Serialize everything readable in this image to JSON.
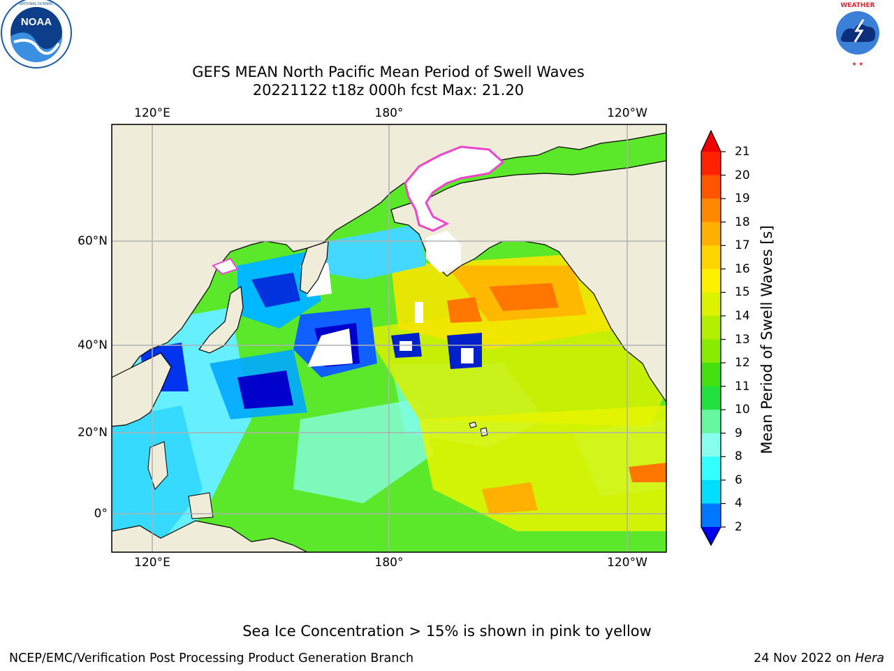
{
  "header": {
    "title_line1": "GEFS MEAN North Pacific Mean Period of Swell Waves",
    "title_line2": "20221122 t18z 000h fcst   Max: 21.20"
  },
  "logos": {
    "left": {
      "name": "NOAA",
      "ring_text": "NATIONAL OCEANIC AND ATMOSPHERIC ADMINISTRATION · U.S. DEPARTMENT OF COMMERCE",
      "color": "#1a5aa8"
    },
    "right": {
      "name": "NATIONAL WEATHER SERVICE",
      "color": "#d6262e"
    }
  },
  "map": {
    "lon_top_ticks": [
      "120°E",
      "180°",
      "120°W"
    ],
    "lon_bottom_ticks": [
      "120°E",
      "180°",
      "120°W"
    ],
    "lat_ticks": [
      "60°N",
      "40°N",
      "20°N",
      "0°"
    ],
    "land_color": "#efedd9",
    "grid_color": "#b0b0b0",
    "ice_color": "#ffffff",
    "ice_edge_color": "#ee44cc"
  },
  "colorbar": {
    "label": "Mean Period of Swell Waves [s]",
    "ticks": [
      "21",
      "20",
      "19",
      "18",
      "17",
      "16",
      "15",
      "14",
      "13",
      "12",
      "11",
      "10",
      "9",
      "8",
      "6",
      "4",
      "2"
    ],
    "colors": [
      "#ff2200",
      "#ff5500",
      "#ff8800",
      "#ffb000",
      "#ffd500",
      "#fff000",
      "#ddf200",
      "#b4ee00",
      "#88ec00",
      "#44e010",
      "#22e040",
      "#66f7a0",
      "#88ffee",
      "#33ffff",
      "#00ddff",
      "#0077ff",
      "#0000ee"
    ],
    "over_color": "#ee0000",
    "under_color": "#0000ee"
  },
  "footer": {
    "note": "Sea Ice Concentration > 15% is shown in pink to yellow",
    "credit": "NCEP/EMC/Verification Post Processing Product Generation Branch",
    "date": "24 Nov 2022 on",
    "machine": "Hera"
  }
}
